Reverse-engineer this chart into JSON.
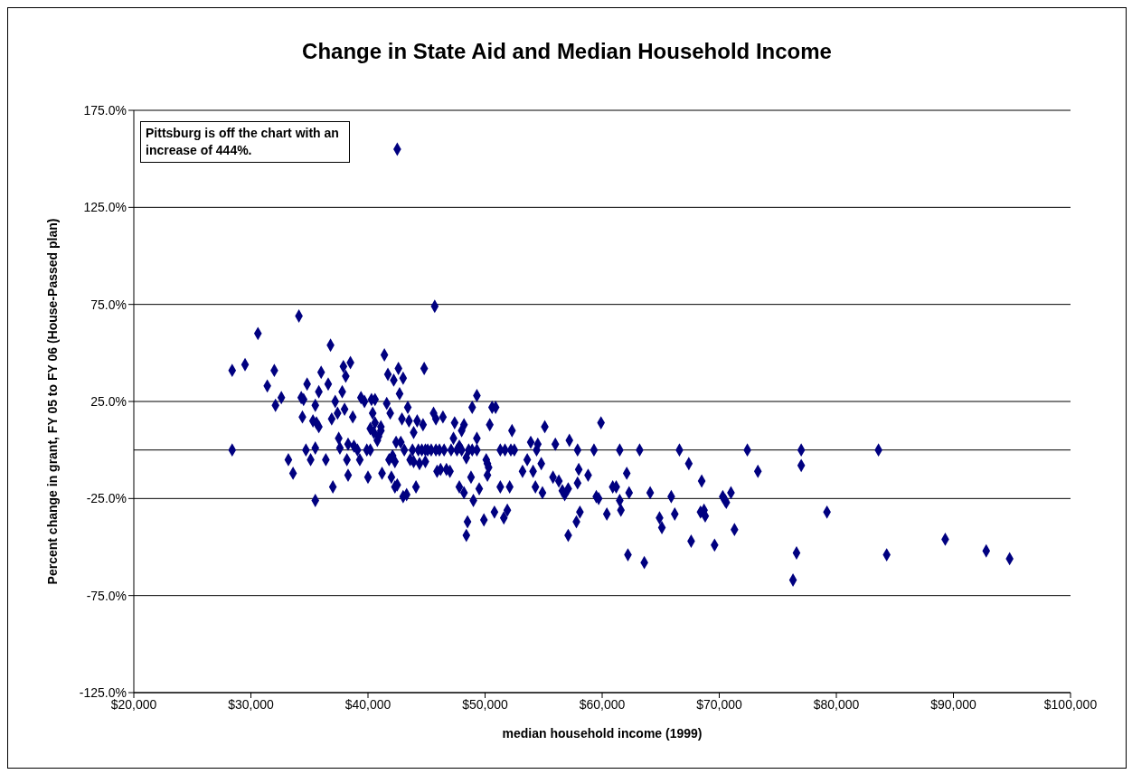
{
  "chart_data": {
    "type": "scatter",
    "title": "Change in State Aid and Median Household Income",
    "xlabel": "median household income (1999)",
    "ylabel": "Percent change in grant, FY 05 to FY 06 (House-Passed plan)",
    "annotations": [
      "Pittsburg is off the chart with an increase of 444%."
    ],
    "x": [
      28400,
      28400,
      29500,
      30600,
      31400,
      32000,
      32100,
      32600,
      33200,
      33600,
      34100,
      34300,
      34500,
      34400,
      34700,
      34800,
      35100,
      35300,
      35500,
      35500,
      35500,
      35600,
      35800,
      35800,
      36000,
      36400,
      36600,
      36800,
      36900,
      37000,
      37200,
      37400,
      37500,
      37600,
      37800,
      37900,
      38000,
      38100,
      38200,
      38300,
      38300,
      38500,
      38700,
      38800,
      39100,
      39300,
      39400,
      39700,
      39900,
      40000,
      40200,
      40200,
      40300,
      40400,
      40500,
      40600,
      40600,
      40800,
      40900,
      41100,
      41100,
      41200,
      41400,
      41600,
      41700,
      41800,
      41900,
      42000,
      42100,
      42200,
      42300,
      42300,
      42400,
      42500,
      42500,
      42600,
      42700,
      42800,
      42900,
      43000,
      43000,
      43100,
      43300,
      43400,
      43500,
      43600,
      43800,
      43900,
      43900,
      44100,
      44200,
      44300,
      44400,
      44600,
      44700,
      44800,
      44900,
      44900,
      45100,
      45400,
      45600,
      45700,
      45800,
      45800,
      45900,
      46100,
      46200,
      46400,
      46500,
      46700,
      47000,
      47100,
      47300,
      47400,
      47600,
      47800,
      47800,
      48000,
      48000,
      48200,
      48200,
      48400,
      48400,
      48500,
      48600,
      48800,
      48900,
      48900,
      49000,
      49300,
      49300,
      49300,
      49500,
      49900,
      50100,
      50200,
      50200,
      50300,
      50400,
      50600,
      50800,
      50900,
      51300,
      51300,
      51600,
      51700,
      51900,
      52100,
      52200,
      52300,
      52500,
      53200,
      53600,
      53900,
      54100,
      54300,
      54400,
      54500,
      54800,
      54900,
      55100,
      55800,
      56000,
      56300,
      56600,
      56800,
      57100,
      57100,
      57200,
      57800,
      57900,
      57900,
      58000,
      58100,
      58800,
      59300,
      59500,
      59700,
      59900,
      60400,
      60900,
      61200,
      61500,
      61500,
      61600,
      62100,
      62200,
      62300,
      63200,
      63600,
      64100,
      64900,
      65100,
      65900,
      66200,
      66600,
      67400,
      67600,
      68500,
      68400,
      68700,
      68800,
      69600,
      70300,
      70500,
      70600,
      71000,
      71300,
      72400,
      73300,
      76300,
      76600,
      77000,
      77000,
      79200,
      83600,
      84300,
      89300,
      92800,
      94800
    ],
    "values": [
      0,
      41,
      44,
      60,
      33,
      41,
      23,
      27,
      -5,
      -12,
      69,
      27,
      26,
      17,
      0,
      34,
      -5,
      15,
      1,
      -26,
      23,
      14,
      12,
      30,
      40,
      -5,
      34,
      54,
      16,
      -19,
      25,
      19,
      6,
      1,
      30,
      43,
      21,
      38,
      -5,
      -13,
      3,
      45,
      17,
      2,
      0,
      -5,
      27,
      25,
      0,
      -14,
      0,
      11,
      26,
      19,
      9,
      14,
      26,
      5,
      7,
      10,
      12,
      -12,
      49,
      24,
      39,
      -5,
      19,
      -14,
      -3,
      36,
      -19,
      -6,
      4,
      -18,
      155,
      42,
      29,
      4,
      16,
      -24,
      37,
      0,
      -23,
      22,
      15,
      -5,
      0,
      9,
      -6,
      -19,
      15,
      0,
      -7,
      0,
      13,
      42,
      0,
      -6,
      0,
      0,
      19,
      74,
      0,
      16,
      -11,
      0,
      -10,
      17,
      0,
      -10,
      -11,
      0,
      6,
      14,
      0,
      2,
      -19,
      0,
      10,
      -22,
      13,
      -4,
      -44,
      -37,
      0,
      -14,
      22,
      0,
      -26,
      28,
      0,
      6,
      -20,
      -36,
      -5,
      -7,
      -13,
      -9,
      13,
      22,
      -32,
      22,
      -19,
      0,
      -35,
      0,
      -31,
      -19,
      0,
      10,
      0,
      -11,
      -5,
      4,
      -11,
      -19,
      0,
      3,
      -7,
      -22,
      12,
      -14,
      3,
      -16,
      -21,
      -23,
      -20,
      -44,
      5,
      -37,
      -17,
      0,
      -10,
      -32,
      -13,
      0,
      -24,
      -25,
      14,
      -33,
      -19,
      -19,
      0,
      -26,
      -31,
      -12,
      -54,
      -22,
      0,
      -58,
      -22,
      -35,
      -40,
      -24,
      -33,
      0,
      -7,
      -47,
      -16,
      -32,
      -31,
      -34,
      -49,
      -24,
      -26,
      -27,
      -22,
      -41,
      0,
      -11,
      -67,
      -53,
      0,
      -8,
      -32,
      0,
      -54,
      -46,
      -52,
      -56
    ],
    "color": "#000080",
    "marker": "diamond",
    "grid": "y",
    "legend": false,
    "xlim": [
      20000,
      100000
    ],
    "xticks": [
      {
        "value": 20000,
        "label": "$20,000"
      },
      {
        "value": 30000,
        "label": "$30,000"
      },
      {
        "value": 40000,
        "label": "$40,000"
      },
      {
        "value": 50000,
        "label": "$50,000"
      },
      {
        "value": 60000,
        "label": "$60,000"
      },
      {
        "value": 70000,
        "label": "$70,000"
      },
      {
        "value": 80000,
        "label": "$80,000"
      },
      {
        "value": 90000,
        "label": "$90,000"
      },
      {
        "value": 100000,
        "label": "$100,000"
      }
    ],
    "ylim": [
      -125,
      175
    ],
    "yticks": [
      {
        "value": -125,
        "label": "-125.0%"
      },
      {
        "value": -75,
        "label": "-75.0%"
      },
      {
        "value": -25,
        "label": "-25.0%"
      },
      {
        "value": 25,
        "label": "25.0%"
      },
      {
        "value": 75,
        "label": "75.0%"
      },
      {
        "value": 125,
        "label": "125.0%"
      },
      {
        "value": 175,
        "label": "175.0%"
      }
    ],
    "ref_lines": [
      {
        "axis": "y",
        "value": 0,
        "color": "#000000"
      }
    ]
  }
}
